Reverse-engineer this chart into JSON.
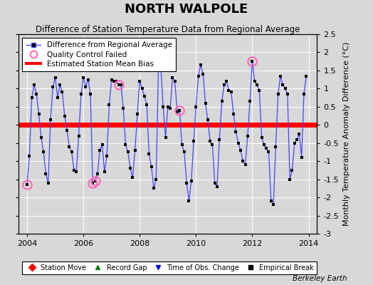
{
  "title": "NORTH WALPOLE",
  "subtitle": "Difference of Station Temperature Data from Regional Average",
  "ylabel": "Monthly Temperature Anomaly Difference (°C)",
  "xlabel_bottom": "Berkeley Earth",
  "bias_value": 0.0,
  "ylim": [
    -3,
    2.5
  ],
  "xlim": [
    2003.7,
    2014.3
  ],
  "xticks": [
    2004,
    2006,
    2008,
    2010,
    2012,
    2014
  ],
  "yticks": [
    -3,
    -2.5,
    -2,
    -1.5,
    -1,
    -0.5,
    0,
    0.5,
    1,
    1.5,
    2,
    2.5
  ],
  "ytick_labels": [
    "-3",
    "-2.5",
    "-2",
    "-1.5",
    "-1",
    "-0.5",
    "0",
    "0.5",
    "1",
    "1.5",
    "2",
    "2.5"
  ],
  "line_color": "#4444ff",
  "marker_color": "#000000",
  "bias_color": "#ff0000",
  "qc_color": "#ff69b4",
  "background_color": "#d8d8d8",
  "fig_background": "#d8d8d8",
  "title_fontsize": 13,
  "subtitle_fontsize": 8.5,
  "tick_fontsize": 8,
  "data": [
    [
      2004.0,
      -1.65
    ],
    [
      2004.083,
      -0.85
    ],
    [
      2004.167,
      0.75
    ],
    [
      2004.25,
      1.1
    ],
    [
      2004.333,
      0.85
    ],
    [
      2004.417,
      0.3
    ],
    [
      2004.5,
      -0.35
    ],
    [
      2004.583,
      -0.75
    ],
    [
      2004.667,
      -1.35
    ],
    [
      2004.75,
      -1.6
    ],
    [
      2004.833,
      0.15
    ],
    [
      2004.917,
      1.05
    ],
    [
      2005.0,
      1.3
    ],
    [
      2005.083,
      0.75
    ],
    [
      2005.167,
      1.1
    ],
    [
      2005.25,
      0.9
    ],
    [
      2005.333,
      0.25
    ],
    [
      2005.417,
      -0.15
    ],
    [
      2005.5,
      -0.6
    ],
    [
      2005.583,
      -0.75
    ],
    [
      2005.667,
      -1.25
    ],
    [
      2005.75,
      -1.3
    ],
    [
      2005.833,
      -0.3
    ],
    [
      2005.917,
      0.85
    ],
    [
      2006.0,
      1.3
    ],
    [
      2006.083,
      1.05
    ],
    [
      2006.167,
      1.25
    ],
    [
      2006.25,
      0.85
    ],
    [
      2006.333,
      -1.6
    ],
    [
      2006.417,
      -1.55
    ],
    [
      2006.5,
      -1.35
    ],
    [
      2006.583,
      -0.7
    ],
    [
      2006.667,
      -0.55
    ],
    [
      2006.75,
      -1.3
    ],
    [
      2006.833,
      -0.85
    ],
    [
      2006.917,
      0.55
    ],
    [
      2007.0,
      1.25
    ],
    [
      2007.083,
      1.2
    ],
    [
      2007.167,
      1.2
    ],
    [
      2007.25,
      1.1
    ],
    [
      2007.333,
      1.1
    ],
    [
      2007.417,
      0.45
    ],
    [
      2007.5,
      -0.55
    ],
    [
      2007.583,
      -0.75
    ],
    [
      2007.667,
      -1.2
    ],
    [
      2007.75,
      -1.45
    ],
    [
      2007.833,
      -0.7
    ],
    [
      2007.917,
      0.3
    ],
    [
      2008.0,
      1.2
    ],
    [
      2008.083,
      1.0
    ],
    [
      2008.167,
      0.8
    ],
    [
      2008.25,
      0.55
    ],
    [
      2008.333,
      -0.8
    ],
    [
      2008.417,
      -1.15
    ],
    [
      2008.5,
      -1.75
    ],
    [
      2008.583,
      -1.5
    ],
    [
      2008.667,
      1.65
    ],
    [
      2008.75,
      1.6
    ],
    [
      2008.833,
      0.5
    ],
    [
      2008.917,
      -0.35
    ],
    [
      2009.0,
      0.5
    ],
    [
      2009.083,
      0.45
    ],
    [
      2009.167,
      1.3
    ],
    [
      2009.25,
      1.2
    ],
    [
      2009.333,
      0.35
    ],
    [
      2009.417,
      0.4
    ],
    [
      2009.5,
      -0.55
    ],
    [
      2009.583,
      -0.75
    ],
    [
      2009.667,
      -1.6
    ],
    [
      2009.75,
      -2.1
    ],
    [
      2009.833,
      -1.55
    ],
    [
      2009.917,
      -0.45
    ],
    [
      2010.0,
      0.5
    ],
    [
      2010.083,
      1.35
    ],
    [
      2010.167,
      1.65
    ],
    [
      2010.25,
      1.4
    ],
    [
      2010.333,
      0.6
    ],
    [
      2010.417,
      0.15
    ],
    [
      2010.5,
      -0.45
    ],
    [
      2010.583,
      -0.55
    ],
    [
      2010.667,
      -1.6
    ],
    [
      2010.75,
      -1.7
    ],
    [
      2010.833,
      -0.4
    ],
    [
      2010.917,
      0.65
    ],
    [
      2011.0,
      1.1
    ],
    [
      2011.083,
      1.2
    ],
    [
      2011.167,
      0.95
    ],
    [
      2011.25,
      0.9
    ],
    [
      2011.333,
      0.3
    ],
    [
      2011.417,
      -0.2
    ],
    [
      2011.5,
      -0.5
    ],
    [
      2011.583,
      -0.7
    ],
    [
      2011.667,
      -1.0
    ],
    [
      2011.75,
      -1.1
    ],
    [
      2011.833,
      -0.3
    ],
    [
      2011.917,
      0.65
    ],
    [
      2012.0,
      1.75
    ],
    [
      2012.083,
      1.2
    ],
    [
      2012.167,
      1.1
    ],
    [
      2012.25,
      0.95
    ],
    [
      2012.333,
      -0.35
    ],
    [
      2012.417,
      -0.55
    ],
    [
      2012.5,
      -0.65
    ],
    [
      2012.583,
      -0.75
    ],
    [
      2012.667,
      -2.1
    ],
    [
      2012.75,
      -2.2
    ],
    [
      2012.833,
      -0.6
    ],
    [
      2012.917,
      0.85
    ],
    [
      2013.0,
      1.35
    ],
    [
      2013.083,
      1.1
    ],
    [
      2013.167,
      1.0
    ],
    [
      2013.25,
      0.85
    ],
    [
      2013.333,
      -1.5
    ],
    [
      2013.417,
      -1.25
    ],
    [
      2013.5,
      -0.5
    ],
    [
      2013.583,
      -0.4
    ],
    [
      2013.667,
      -0.25
    ],
    [
      2013.75,
      -0.9
    ],
    [
      2013.833,
      0.85
    ],
    [
      2013.917,
      1.35
    ]
  ],
  "qc_failed": [
    [
      2004.0,
      -1.65
    ],
    [
      2006.333,
      -1.6
    ],
    [
      2006.417,
      -1.55
    ],
    [
      2007.25,
      1.1
    ],
    [
      2009.417,
      0.4
    ],
    [
      2012.0,
      1.75
    ]
  ]
}
